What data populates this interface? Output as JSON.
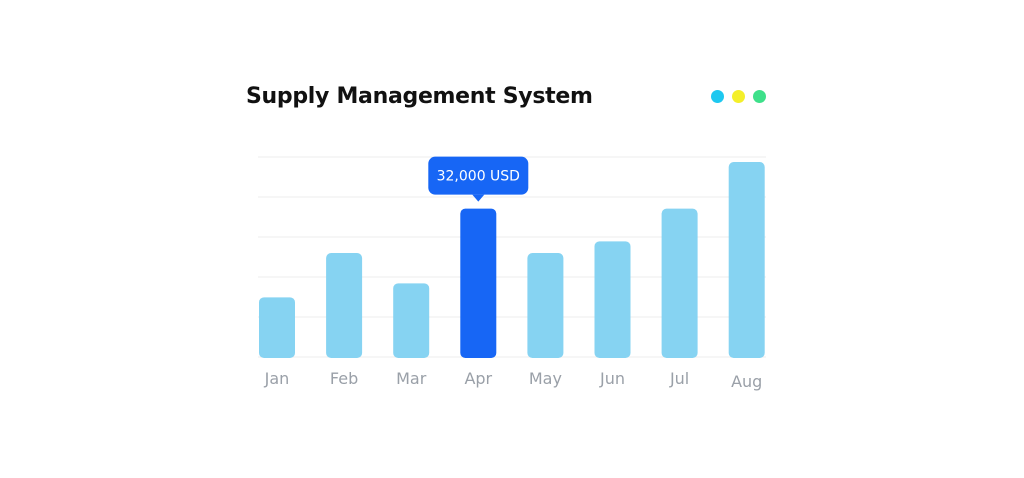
{
  "header": {
    "title": "Supply Management System"
  },
  "window_dots": [
    {
      "name": "blue-dot",
      "color": "#1ec8f0"
    },
    {
      "name": "yellow-dot",
      "color": "#f4ef2a"
    },
    {
      "name": "green-dot",
      "color": "#3ee08a"
    }
  ],
  "colors": {
    "bar": "#86d3f2",
    "bar_highlight": "#1766f5",
    "grid": "#ececec",
    "tooltip_bg": "#1766f5"
  },
  "chart_data": {
    "type": "bar",
    "title": "Supply Management System",
    "xlabel": "",
    "ylabel": "",
    "categories": [
      "Jan",
      "Feb",
      "Mar",
      "Apr",
      "May",
      "Jun",
      "Jul",
      "Aug"
    ],
    "values": [
      13000,
      22500,
      16000,
      32000,
      22500,
      25000,
      32000,
      42000
    ],
    "ylim": [
      0,
      45000
    ],
    "grid": true,
    "highlight_index": 3,
    "tooltip": {
      "category": "Apr",
      "label": "32,000 USD"
    }
  }
}
